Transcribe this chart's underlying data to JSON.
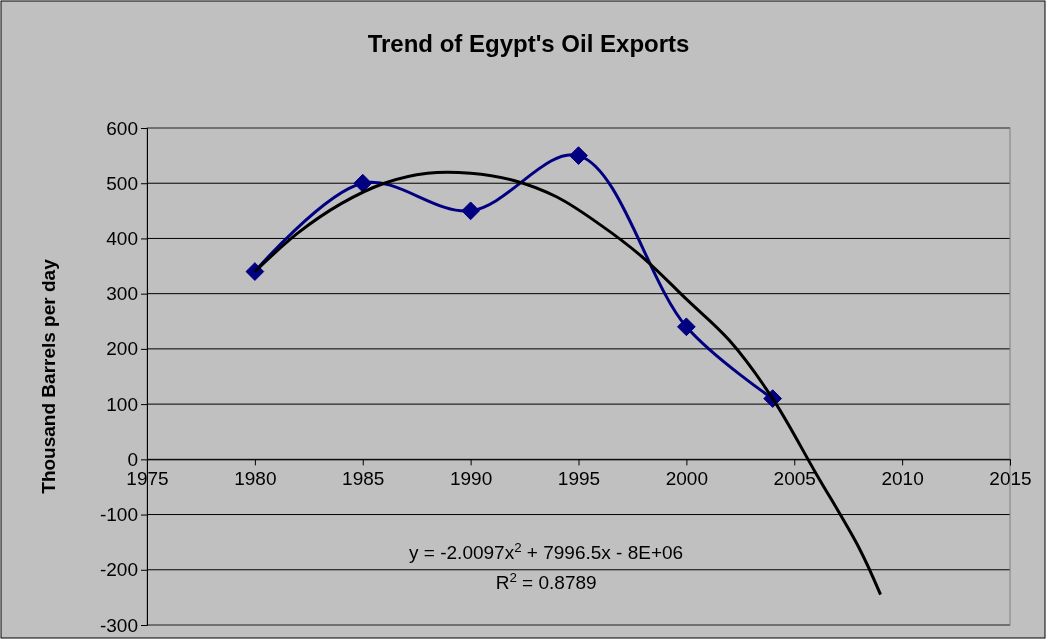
{
  "chart_data": {
    "type": "line",
    "title": "Trend of Egypt's Oil Exports",
    "ylabel": "Thousand Barrels per day",
    "xlim": [
      1975,
      2015
    ],
    "xticks": [
      1975,
      1980,
      1985,
      1990,
      1995,
      2000,
      2005,
      2010,
      2015
    ],
    "ylim": [
      -300,
      600
    ],
    "yticks": [
      -300,
      -200,
      -100,
      0,
      100,
      200,
      300,
      400,
      500,
      600
    ],
    "grid": "y",
    "series": [
      {
        "color": "#000080",
        "marker": "diamond",
        "x": [
          1980,
          1985,
          1990,
          1995,
          2000,
          2004
        ],
        "values": [
          340,
          500,
          450,
          550,
          240,
          110
        ]
      },
      {
        "color": "#000000",
        "marker": "none",
        "x": [
          1980,
          1982,
          1984,
          1986,
          1988,
          1990,
          1992,
          1994,
          1996,
          1998,
          2000,
          2002,
          2004,
          2006,
          2008,
          2009
        ],
        "values": [
          340,
          410,
          463,
          500,
          518,
          518,
          505,
          475,
          425,
          365,
          290,
          215,
          110,
          -25,
          -160,
          -245
        ]
      }
    ],
    "annotations": [
      "y = -2.0097x$^{2}$ + 7996.5x - 8E+06",
      "R$^{2}$ = 0.8789"
    ]
  }
}
